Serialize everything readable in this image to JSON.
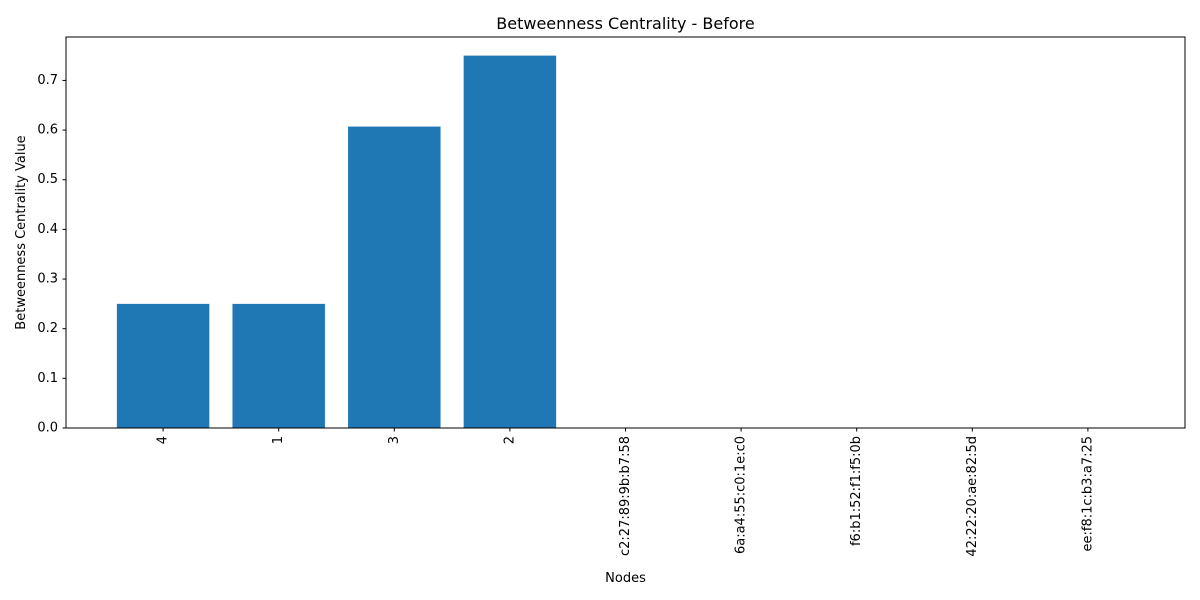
{
  "chart_data": {
    "type": "bar",
    "title": "Betweenness Centrality - Before",
    "xlabel": "Nodes",
    "ylabel": "Betweenness Centrality Value",
    "categories": [
      "4",
      "1",
      "3",
      "2",
      "c2:27:89:9b:b7:58",
      "6a:a4:55:c0:1e:c0",
      "f6:b1:52:f1:f5:0b",
      "42:22:20:ae:82:5d",
      "ee:f8:1c:b3:a7:25"
    ],
    "values": [
      0.25,
      0.25,
      0.6071,
      0.75,
      0,
      0,
      0,
      0,
      0
    ],
    "ylim": [
      0,
      0.7875
    ],
    "yticks": [
      0.0,
      0.1,
      0.2,
      0.3,
      0.4,
      0.5,
      0.6,
      0.7
    ],
    "ytick_labels": [
      "0.0",
      "0.1",
      "0.2",
      "0.3",
      "0.4",
      "0.5",
      "0.6",
      "0.7"
    ],
    "bar_color": "#1f77b4",
    "grid": false,
    "legend": null
  }
}
